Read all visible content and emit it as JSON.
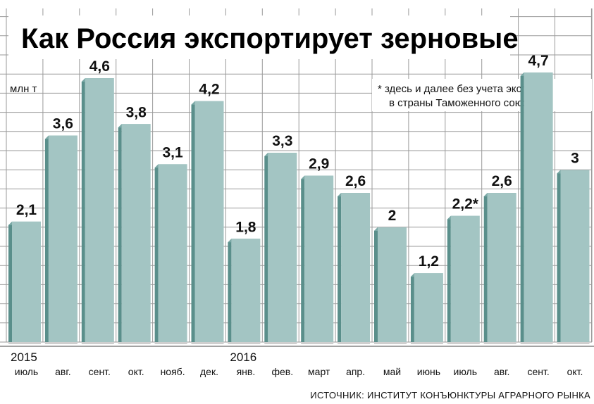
{
  "chart_data": {
    "type": "bar",
    "title": "Как Россия экспортирует зерновые",
    "unit_label": "млн т",
    "note": [
      "* здесь и далее без учета экспорта",
      "в страны Таможенного союза"
    ],
    "years": [
      {
        "label": "2015",
        "category_index": 0
      },
      {
        "label": "2016",
        "category_index": 6
      }
    ],
    "categories": [
      "июль",
      "авг.",
      "сент.",
      "окт.",
      "нояб.",
      "дек.",
      "янв.",
      "фев.",
      "март",
      "апр.",
      "май",
      "июнь",
      "июль",
      "авг.",
      "сент.",
      "окт."
    ],
    "values": [
      2.1,
      3.6,
      4.6,
      3.8,
      3.1,
      4.2,
      1.8,
      3.3,
      2.9,
      2.6,
      2,
      1.2,
      2.2,
      2.6,
      4.7,
      3
    ],
    "value_labels": [
      "2,1",
      "3,6",
      "4,6",
      "3,8",
      "3,1",
      "4,2",
      "1,8",
      "3,3",
      "2,9",
      "2,6",
      "2",
      "1,2",
      "2,2*",
      "2,6",
      "4,7",
      "3"
    ],
    "ylim": [
      0,
      5
    ],
    "grid": true,
    "source": "ИСТОЧНИК: ИНСТИТУТ КОНЪЮНКТУРЫ АГРАРНОГО РЫНКА",
    "colors": {
      "bar_front": "#a3c5c3",
      "bar_side": "#5a8f8b",
      "bar_top": "#7aa9a6",
      "grid": "#9a9a9a",
      "background": "#ffffff"
    }
  }
}
